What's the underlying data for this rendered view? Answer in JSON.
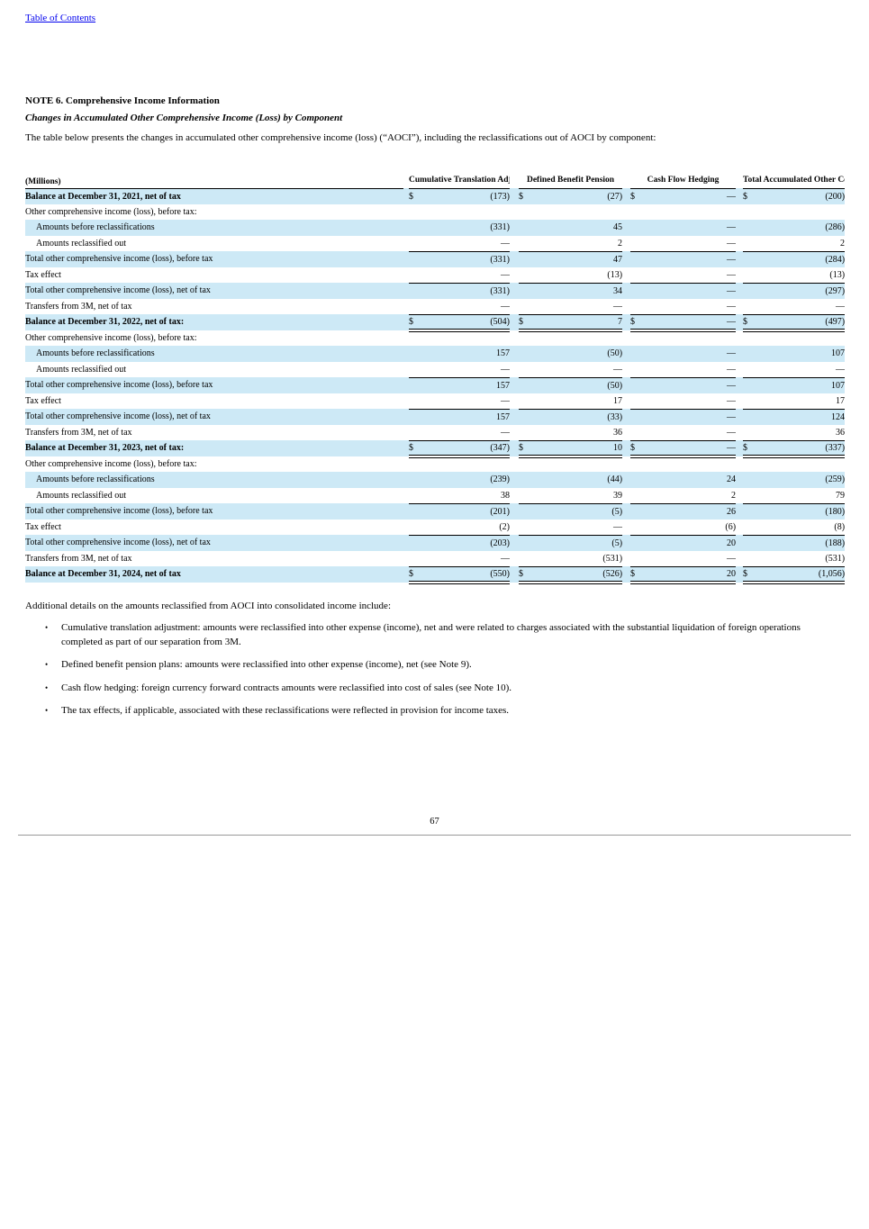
{
  "page": {
    "toc_link": "Table of Contents",
    "note_title": "NOTE 6. Comprehensive Income Information",
    "subtitle": "Changes in Accumulated Other Comprehensive Income (Loss) by Component",
    "intro": "The table below presents the changes in accumulated other comprehensive income (loss) (“AOCI”), including the reclassifications out of AOCI by component:",
    "page_number": "67"
  },
  "colors": {
    "row_shade": "#CDE9F6",
    "link_blue": "#0000EE"
  },
  "table": {
    "unit_label": "(Millions)",
    "columns": [
      "Cumulative Translation Adjustment",
      "Defined Benefit Pension",
      "Cash Flow Hedging",
      "Total Accumulated Other Comprehensive Income (Loss)"
    ],
    "rows": [
      {
        "label": "Balance at December 31, 2021, net of tax",
        "bold": true,
        "dollar": true,
        "shade": true,
        "rule": "none",
        "values": [
          "(173)",
          "(27)",
          "—",
          "(200)"
        ]
      },
      {
        "label": "Other comprehensive income (loss), before tax:",
        "bold": false,
        "dollar": false,
        "shade": false,
        "rule": "none",
        "values": [
          "",
          "",
          "",
          ""
        ]
      },
      {
        "label": "Amounts before reclassifications",
        "indent": true,
        "bold": false,
        "dollar": false,
        "shade": true,
        "rule": "none",
        "values": [
          "(331)",
          "45",
          "—",
          "(286)"
        ]
      },
      {
        "label": "Amounts reclassified out",
        "indent": true,
        "bold": false,
        "dollar": false,
        "shade": false,
        "rule": "single",
        "values": [
          "—",
          "2",
          "—",
          "2"
        ]
      },
      {
        "label": "Total other comprehensive income (loss), before tax",
        "bold": false,
        "dollar": false,
        "shade": true,
        "rule": "none",
        "values": [
          "(331)",
          "47",
          "—",
          "(284)"
        ]
      },
      {
        "label": "Tax effect",
        "bold": false,
        "dollar": false,
        "shade": false,
        "rule": "single",
        "values": [
          "—",
          "(13)",
          "—",
          "(13)"
        ]
      },
      {
        "label": "Total other comprehensive income (loss), net of tax",
        "bold": false,
        "dollar": false,
        "shade": true,
        "rule": "none",
        "values": [
          "(331)",
          "34",
          "—",
          "(297)"
        ]
      },
      {
        "label": "Transfers from 3M, net of tax",
        "bold": false,
        "dollar": false,
        "shade": false,
        "rule": "single",
        "values": [
          "—",
          "—",
          "—",
          "—"
        ]
      },
      {
        "label": "Balance at December 31, 2022, net of tax:",
        "bold": true,
        "dollar": true,
        "shade": true,
        "rule": "double",
        "values": [
          "(504)",
          "7",
          "—",
          "(497)"
        ]
      },
      {
        "label": "Other comprehensive income (loss), before tax:",
        "bold": false,
        "dollar": false,
        "shade": false,
        "rule": "none",
        "values": [
          "",
          "",
          "",
          ""
        ]
      },
      {
        "label": "Amounts before reclassifications",
        "indent": true,
        "bold": false,
        "dollar": false,
        "shade": true,
        "rule": "none",
        "values": [
          "157",
          "(50)",
          "—",
          "107"
        ]
      },
      {
        "label": "Amounts reclassified out",
        "indent": true,
        "bold": false,
        "dollar": false,
        "shade": false,
        "rule": "single",
        "values": [
          "—",
          "—",
          "—",
          "—"
        ]
      },
      {
        "label": "Total other comprehensive income (loss), before tax",
        "bold": false,
        "dollar": false,
        "shade": true,
        "rule": "none",
        "values": [
          "157",
          "(50)",
          "—",
          "107"
        ]
      },
      {
        "label": "Tax effect",
        "bold": false,
        "dollar": false,
        "shade": false,
        "rule": "single",
        "values": [
          "—",
          "17",
          "—",
          "17"
        ]
      },
      {
        "label": "Total other comprehensive income (loss), net of tax",
        "bold": false,
        "dollar": false,
        "shade": true,
        "rule": "none",
        "values": [
          "157",
          "(33)",
          "—",
          "124"
        ]
      },
      {
        "label": "Transfers from 3M, net of tax",
        "bold": false,
        "dollar": false,
        "shade": false,
        "rule": "single",
        "values": [
          "—",
          "36",
          "—",
          "36"
        ]
      },
      {
        "label": "Balance at December 31, 2023, net of tax:",
        "bold": true,
        "dollar": true,
        "shade": true,
        "rule": "double",
        "values": [
          "(347)",
          "10",
          "—",
          "(337)"
        ]
      },
      {
        "label": "Other comprehensive income (loss), before tax:",
        "bold": false,
        "dollar": false,
        "shade": false,
        "rule": "none",
        "values": [
          "",
          "",
          "",
          ""
        ]
      },
      {
        "label": "Amounts before reclassifications",
        "indent": true,
        "bold": false,
        "dollar": false,
        "shade": true,
        "rule": "none",
        "values": [
          "(239)",
          "(44)",
          "24",
          "(259)"
        ]
      },
      {
        "label": "Amounts reclassified out",
        "indent": true,
        "bold": false,
        "dollar": false,
        "shade": false,
        "rule": "single",
        "values": [
          "38",
          "39",
          "2",
          "79"
        ]
      },
      {
        "label": "Total other comprehensive income (loss), before tax",
        "bold": false,
        "dollar": false,
        "shade": true,
        "rule": "none",
        "values": [
          "(201)",
          "(5)",
          "26",
          "(180)"
        ]
      },
      {
        "label": "Tax effect",
        "bold": false,
        "dollar": false,
        "shade": false,
        "rule": "single",
        "values": [
          "(2)",
          "—",
          "(6)",
          "(8)"
        ]
      },
      {
        "label": "Total other comprehensive income (loss), net of tax",
        "bold": false,
        "dollar": false,
        "shade": true,
        "rule": "none",
        "values": [
          "(203)",
          "(5)",
          "20",
          "(188)"
        ]
      },
      {
        "label": "Transfers from 3M, net of tax",
        "bold": false,
        "dollar": false,
        "shade": false,
        "rule": "single",
        "values": [
          "—",
          "(531)",
          "—",
          "(531)"
        ]
      },
      {
        "label": "Balance at December 31, 2024, net of tax",
        "bold": true,
        "dollar": true,
        "shade": true,
        "rule": "double",
        "values": [
          "(550)",
          "(526)",
          "20",
          "(1,056)"
        ]
      }
    ]
  },
  "notes": {
    "intro": "Additional details on the amounts reclassified from AOCI into consolidated income include:",
    "bullets": [
      "Cumulative translation adjustment: amounts were reclassified into other expense (income), net and were related to charges associated with the substantial liquidation of foreign operations completed as part of our separation from 3M.",
      "Defined benefit pension plans: amounts were reclassified into other expense (income), net (see Note 9).",
      "Cash flow hedging: foreign currency forward contracts amounts were reclassified into cost of sales (see Note 10).",
      "The tax effects, if applicable, associated with these reclassifications were reflected in provision for income taxes."
    ]
  }
}
